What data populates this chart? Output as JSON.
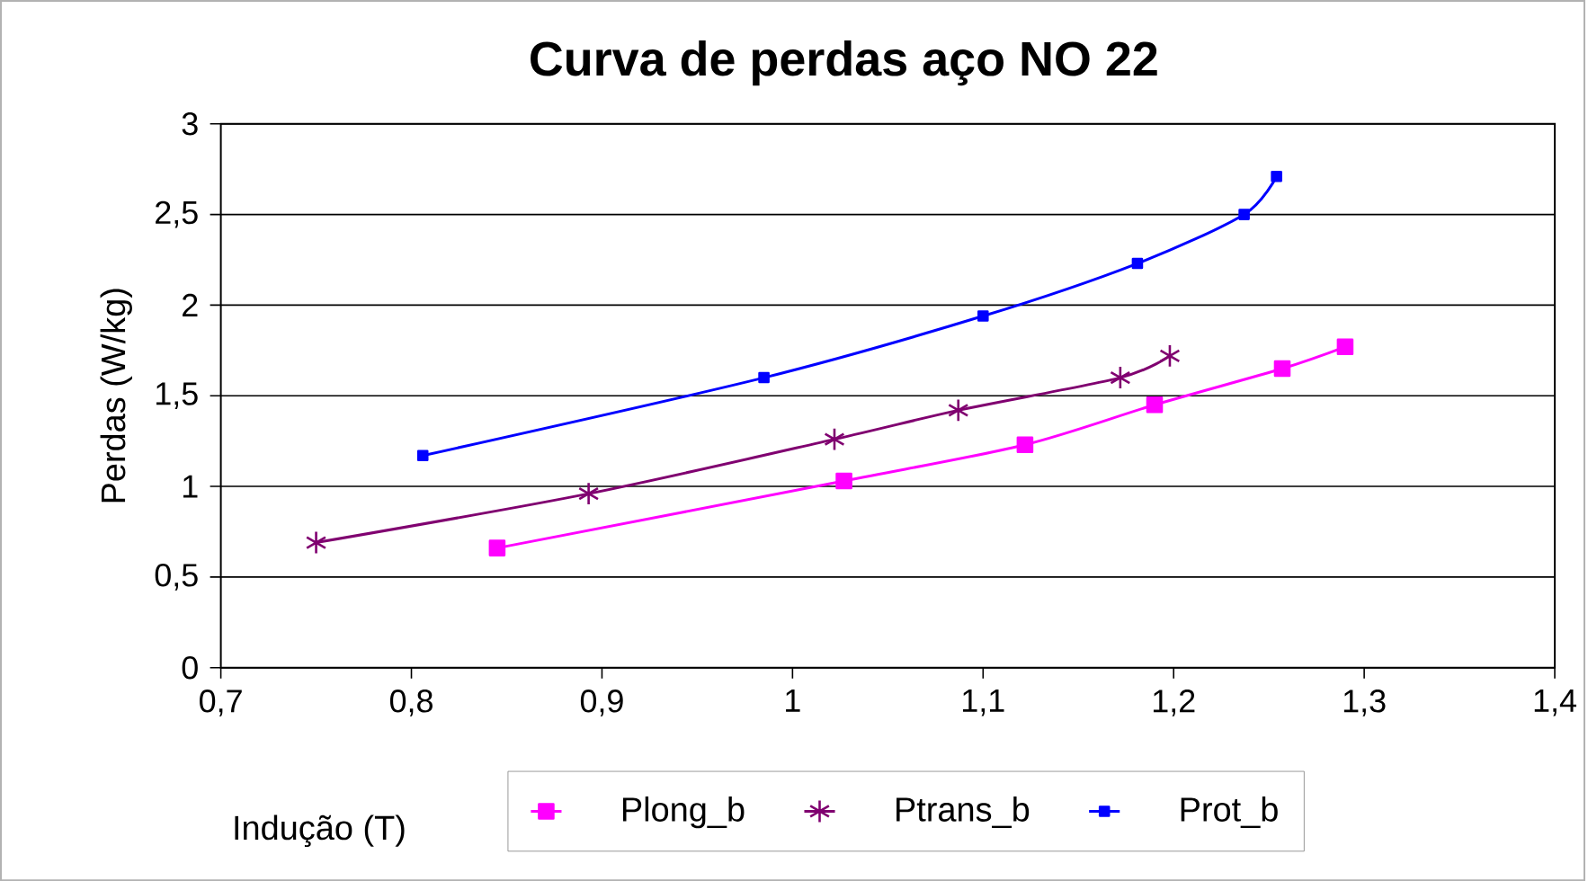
{
  "chart_data": {
    "type": "line",
    "title": "Curva de perdas aço NO 22",
    "xlabel": "Indução (T)",
    "ylabel": "Perdas (W/kg)",
    "xlim": [
      0.7,
      1.4
    ],
    "ylim": [
      0,
      3
    ],
    "xticks": [
      {
        "value": 0.7,
        "label": "0,7"
      },
      {
        "value": 0.8,
        "label": "0,8"
      },
      {
        "value": 0.9,
        "label": "0,9"
      },
      1,
      {
        "value": 1.1,
        "label": "1,1"
      },
      {
        "value": 1.2,
        "label": "1,2"
      },
      {
        "value": 1.3,
        "label": "1,3"
      },
      {
        "value": 1.4,
        "label": "1,4"
      }
    ],
    "yticks": [
      0,
      {
        "value": 0.5,
        "label": "0,5"
      },
      1,
      {
        "value": 1.5,
        "label": "1,5"
      },
      2,
      {
        "value": 2.5,
        "label": "2,5"
      },
      3
    ],
    "grid": "y",
    "legend": "bottom",
    "series": [
      {
        "name": "Plong_b",
        "color": "#ff00ff",
        "marker": "square",
        "x": [
          0.845,
          1.027,
          1.122,
          1.19,
          1.257,
          1.29
        ],
        "values": [
          0.66,
          1.03,
          1.23,
          1.45,
          1.65,
          1.77
        ]
      },
      {
        "name": "Ptrans_b",
        "color": "#800070",
        "marker": "cross",
        "x": [
          0.75,
          0.893,
          1.022,
          1.087,
          1.172,
          1.198
        ],
        "values": [
          0.69,
          0.96,
          1.26,
          1.42,
          1.6,
          1.72
        ]
      },
      {
        "name": "Prot_b",
        "color": "#0000ff",
        "marker": "square",
        "x": [
          0.806,
          0.985,
          1.1,
          1.181,
          1.237,
          1.254
        ],
        "values": [
          1.17,
          1.6,
          1.94,
          2.23,
          2.5,
          2.71
        ]
      }
    ]
  }
}
